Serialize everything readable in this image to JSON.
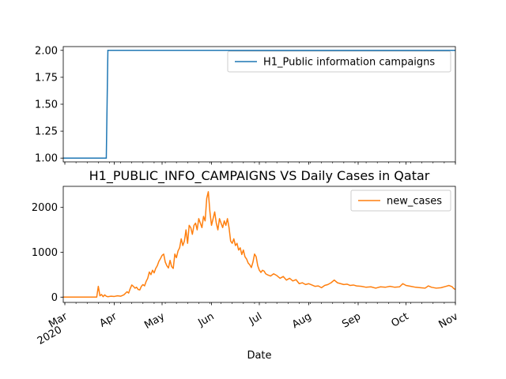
{
  "chart_data": [
    {
      "type": "line",
      "title": "",
      "xlabel": "",
      "ylabel": "",
      "ylim": [
        0.965,
        2.035
      ],
      "yticks": [
        "1.00",
        "1.25",
        "1.50",
        "1.75",
        "2.00"
      ],
      "ytick_values": [
        1.0,
        1.25,
        1.5,
        1.75,
        2.0
      ],
      "xlim": [
        "2020-02-29",
        "2020-11-01"
      ],
      "legend": "upper right",
      "grid": false,
      "series": [
        {
          "name": "H1_Public information campaigns",
          "color": "#1f77b4",
          "points": [
            [
              "2020-02-29",
              1
            ],
            [
              "2020-03-27",
              1
            ],
            [
              "2020-03-28",
              2
            ],
            [
              "2020-11-01",
              2
            ]
          ]
        }
      ]
    },
    {
      "type": "line",
      "title": "H1_PUBLIC_INFO_CAMPAIGNS VS Daily Cases in Qatar",
      "xlabel": "Date",
      "ylabel": "",
      "ylim": [
        -118,
        2470
      ],
      "yticks": [
        "0",
        "1000",
        "2000"
      ],
      "ytick_values": [
        0,
        1000,
        2000
      ],
      "xlim": [
        "2020-02-29",
        "2020-11-01"
      ],
      "xticks": [
        {
          "date": "2020-03-01",
          "label": "Mar",
          "label2": "2020"
        },
        {
          "date": "2020-04-01",
          "label": "Apr"
        },
        {
          "date": "2020-05-01",
          "label": "May"
        },
        {
          "date": "2020-06-01",
          "label": "Jun"
        },
        {
          "date": "2020-07-01",
          "label": "Jul"
        },
        {
          "date": "2020-08-01",
          "label": "Aug"
        },
        {
          "date": "2020-09-01",
          "label": "Sep"
        },
        {
          "date": "2020-10-01",
          "label": "Oct"
        },
        {
          "date": "2020-11-01",
          "label": "Nov"
        }
      ],
      "legend": "upper right",
      "grid": false,
      "series": [
        {
          "name": "new_cases",
          "color": "#ff7f0e",
          "points": [
            [
              "2020-02-29",
              0
            ],
            [
              "2020-03-05",
              0
            ],
            [
              "2020-03-10",
              0
            ],
            [
              "2020-03-15",
              0
            ],
            [
              "2020-03-21",
              0
            ],
            [
              "2020-03-22",
              240
            ],
            [
              "2020-03-23",
              30
            ],
            [
              "2020-03-24",
              60
            ],
            [
              "2020-03-25",
              10
            ],
            [
              "2020-03-26",
              50
            ],
            [
              "2020-03-27",
              20
            ],
            [
              "2020-03-28",
              10
            ],
            [
              "2020-03-30",
              20
            ],
            [
              "2020-04-01",
              15
            ],
            [
              "2020-04-03",
              30
            ],
            [
              "2020-04-05",
              20
            ],
            [
              "2020-04-07",
              50
            ],
            [
              "2020-04-09",
              120
            ],
            [
              "2020-04-10",
              90
            ],
            [
              "2020-04-11",
              190
            ],
            [
              "2020-04-12",
              270
            ],
            [
              "2020-04-13",
              240
            ],
            [
              "2020-04-14",
              200
            ],
            [
              "2020-04-15",
              220
            ],
            [
              "2020-04-16",
              170
            ],
            [
              "2020-04-17",
              160
            ],
            [
              "2020-04-18",
              240
            ],
            [
              "2020-04-19",
              280
            ],
            [
              "2020-04-20",
              250
            ],
            [
              "2020-04-21",
              350
            ],
            [
              "2020-04-22",
              420
            ],
            [
              "2020-04-23",
              560
            ],
            [
              "2020-04-24",
              500
            ],
            [
              "2020-04-25",
              600
            ],
            [
              "2020-04-26",
              540
            ],
            [
              "2020-04-27",
              640
            ],
            [
              "2020-04-28",
              700
            ],
            [
              "2020-04-29",
              800
            ],
            [
              "2020-04-30",
              860
            ],
            [
              "2020-05-01",
              930
            ],
            [
              "2020-05-02",
              960
            ],
            [
              "2020-05-03",
              780
            ],
            [
              "2020-05-04",
              700
            ],
            [
              "2020-05-05",
              650
            ],
            [
              "2020-05-06",
              820
            ],
            [
              "2020-05-07",
              680
            ],
            [
              "2020-05-08",
              640
            ],
            [
              "2020-05-09",
              960
            ],
            [
              "2020-05-10",
              880
            ],
            [
              "2020-05-11",
              1030
            ],
            [
              "2020-05-12",
              1100
            ],
            [
              "2020-05-13",
              1300
            ],
            [
              "2020-05-14",
              1150
            ],
            [
              "2020-05-15",
              1250
            ],
            [
              "2020-05-16",
              1500
            ],
            [
              "2020-05-17",
              1200
            ],
            [
              "2020-05-18",
              1600
            ],
            [
              "2020-05-19",
              1550
            ],
            [
              "2020-05-20",
              1400
            ],
            [
              "2020-05-21",
              1600
            ],
            [
              "2020-05-22",
              1650
            ],
            [
              "2020-05-23",
              1500
            ],
            [
              "2020-05-24",
              1750
            ],
            [
              "2020-05-25",
              1650
            ],
            [
              "2020-05-26",
              1550
            ],
            [
              "2020-05-27",
              1800
            ],
            [
              "2020-05-28",
              1700
            ],
            [
              "2020-05-29",
              2200
            ],
            [
              "2020-05-30",
              2350
            ],
            [
              "2020-05-31",
              1900
            ],
            [
              "2020-06-01",
              1600
            ],
            [
              "2020-06-02",
              1750
            ],
            [
              "2020-06-03",
              1900
            ],
            [
              "2020-06-04",
              1650
            ],
            [
              "2020-06-05",
              1500
            ],
            [
              "2020-06-06",
              1750
            ],
            [
              "2020-06-07",
              1650
            ],
            [
              "2020-06-08",
              1550
            ],
            [
              "2020-06-09",
              1700
            ],
            [
              "2020-06-10",
              1600
            ],
            [
              "2020-06-11",
              1750
            ],
            [
              "2020-06-12",
              1550
            ],
            [
              "2020-06-13",
              1250
            ],
            [
              "2020-06-14",
              1200
            ],
            [
              "2020-06-15",
              1300
            ],
            [
              "2020-06-16",
              1150
            ],
            [
              "2020-06-17",
              1200
            ],
            [
              "2020-06-18",
              1050
            ],
            [
              "2020-06-19",
              1100
            ],
            [
              "2020-06-20",
              950
            ],
            [
              "2020-06-21",
              1050
            ],
            [
              "2020-06-22",
              900
            ],
            [
              "2020-06-23",
              850
            ],
            [
              "2020-06-24",
              760
            ],
            [
              "2020-06-25",
              720
            ],
            [
              "2020-06-26",
              660
            ],
            [
              "2020-06-27",
              780
            ],
            [
              "2020-06-28",
              960
            ],
            [
              "2020-06-29",
              900
            ],
            [
              "2020-06-30",
              700
            ],
            [
              "2020-07-01",
              600
            ],
            [
              "2020-07-02",
              550
            ],
            [
              "2020-07-03",
              600
            ],
            [
              "2020-07-04",
              580
            ],
            [
              "2020-07-05",
              520
            ],
            [
              "2020-07-06",
              500
            ],
            [
              "2020-07-08",
              470
            ],
            [
              "2020-07-10",
              520
            ],
            [
              "2020-07-12",
              480
            ],
            [
              "2020-07-14",
              420
            ],
            [
              "2020-07-16",
              460
            ],
            [
              "2020-07-18",
              380
            ],
            [
              "2020-07-20",
              420
            ],
            [
              "2020-07-22",
              360
            ],
            [
              "2020-07-24",
              390
            ],
            [
              "2020-07-26",
              300
            ],
            [
              "2020-07-28",
              320
            ],
            [
              "2020-07-30",
              280
            ],
            [
              "2020-08-01",
              300
            ],
            [
              "2020-08-03",
              270
            ],
            [
              "2020-08-05",
              240
            ],
            [
              "2020-08-07",
              250
            ],
            [
              "2020-08-09",
              210
            ],
            [
              "2020-08-11",
              260
            ],
            [
              "2020-08-13",
              280
            ],
            [
              "2020-08-15",
              320
            ],
            [
              "2020-08-17",
              380
            ],
            [
              "2020-08-19",
              320
            ],
            [
              "2020-08-21",
              300
            ],
            [
              "2020-08-23",
              280
            ],
            [
              "2020-08-25",
              290
            ],
            [
              "2020-08-27",
              260
            ],
            [
              "2020-08-29",
              270
            ],
            [
              "2020-08-31",
              250
            ],
            [
              "2020-09-03",
              240
            ],
            [
              "2020-09-06",
              220
            ],
            [
              "2020-09-09",
              230
            ],
            [
              "2020-09-12",
              200
            ],
            [
              "2020-09-15",
              230
            ],
            [
              "2020-09-18",
              220
            ],
            [
              "2020-09-21",
              240
            ],
            [
              "2020-09-24",
              220
            ],
            [
              "2020-09-27",
              230
            ],
            [
              "2020-09-29",
              300
            ],
            [
              "2020-10-01",
              260
            ],
            [
              "2020-10-04",
              240
            ],
            [
              "2020-10-07",
              220
            ],
            [
              "2020-10-10",
              210
            ],
            [
              "2020-10-13",
              200
            ],
            [
              "2020-10-15",
              250
            ],
            [
              "2020-10-17",
              220
            ],
            [
              "2020-10-20",
              200
            ],
            [
              "2020-10-23",
              210
            ],
            [
              "2020-10-26",
              240
            ],
            [
              "2020-10-28",
              260
            ],
            [
              "2020-10-30",
              230
            ],
            [
              "2020-10-31",
              190
            ],
            [
              "2020-11-01",
              170
            ]
          ]
        }
      ]
    }
  ]
}
